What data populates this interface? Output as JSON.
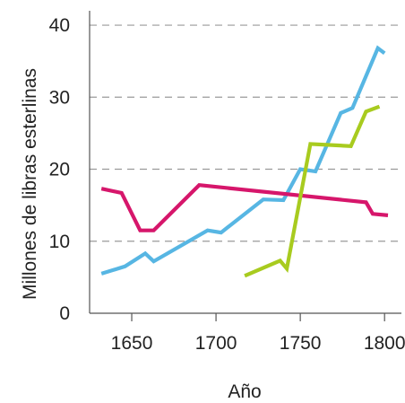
{
  "chart_data": {
    "type": "line",
    "title": "",
    "xlabel": "Año",
    "ylabel": "Millones de libras esterlinas",
    "xlim": [
      1625,
      1810
    ],
    "ylim": [
      0,
      42
    ],
    "x_ticks": [
      1650,
      1700,
      1750,
      1800
    ],
    "y_ticks": [
      0,
      10,
      20,
      30,
      40
    ],
    "grid": "horizontal dashed",
    "legend": "none",
    "series": [
      {
        "color": "#57b6e3",
        "points": [
          [
            1632,
            5.5
          ],
          [
            1646,
            6.5
          ],
          [
            1658,
            8.3
          ],
          [
            1663,
            7.2
          ],
          [
            1695,
            11.5
          ],
          [
            1703,
            11.2
          ],
          [
            1728,
            15.8
          ],
          [
            1740,
            15.7
          ],
          [
            1750,
            20.0
          ],
          [
            1759,
            19.7
          ],
          [
            1774,
            27.8
          ],
          [
            1781,
            28.5
          ],
          [
            1796,
            36.8
          ],
          [
            1800,
            36.1
          ]
        ]
      },
      {
        "color": "#d6166b",
        "points": [
          [
            1632,
            17.3
          ],
          [
            1644,
            16.7
          ],
          [
            1655,
            11.5
          ],
          [
            1663,
            11.5
          ],
          [
            1690,
            17.8
          ],
          [
            1789,
            15.4
          ],
          [
            1793,
            13.8
          ],
          [
            1802,
            13.6
          ]
        ]
      },
      {
        "color": "#a8cb1f",
        "points": [
          [
            1717,
            5.2
          ],
          [
            1738,
            7.3
          ],
          [
            1742,
            6.2
          ],
          [
            1756,
            23.5
          ],
          [
            1780,
            23.2
          ],
          [
            1789,
            28.0
          ],
          [
            1797,
            28.7
          ]
        ]
      }
    ]
  }
}
